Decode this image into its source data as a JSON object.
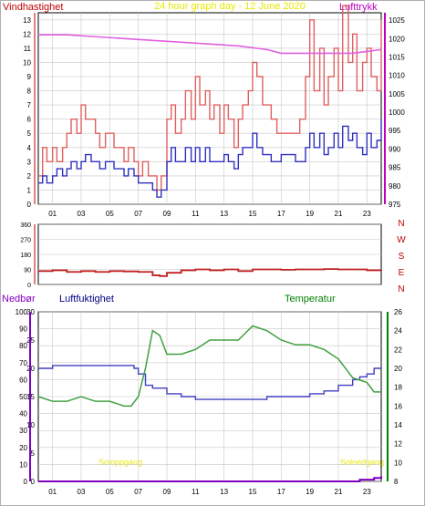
{
  "header": {
    "wind_label": "Vindhastighet",
    "title": "24 hour graph day - 12 June 2020",
    "pressure_label": "Lufttrykk"
  },
  "humidity_header": {
    "precip_label": "Nedbør",
    "humidity_label": "Luftfuktighet",
    "temp_label": "Temperatur"
  },
  "footer": {
    "sunrise": "Soloppgang",
    "sunset": "Solnedgang"
  },
  "colors": {
    "wind_max": "#e06060",
    "wind_avg": "#3030c0",
    "pressure": "#e060e0",
    "direction": "#c02020",
    "humidity": "#4040c0",
    "temperature": "#40a040",
    "precip": "#8000c0",
    "sun_text": "#e8e800",
    "grid": "#c8c8c8"
  },
  "chart_data": [
    {
      "type": "line",
      "title": "24 hour graph day - 12 June 2020",
      "ylabel": "Vindhastighet",
      "y2label": "Lufttrykk",
      "xticks": [
        "01",
        "03",
        "05",
        "07",
        "09",
        "11",
        "13",
        "15",
        "17",
        "19",
        "21",
        "23"
      ],
      "ylim": [
        0,
        13.5
      ],
      "yticks": [
        0,
        1,
        2,
        3,
        4,
        5,
        6,
        7,
        8,
        9,
        10,
        11,
        12,
        13
      ],
      "y2lim": [
        975,
        1027
      ],
      "y2ticks": [
        975,
        980,
        985,
        990,
        995,
        1000,
        1005,
        1010,
        1015,
        1020,
        1025
      ],
      "grid": true,
      "series": [
        {
          "axis": "left",
          "x": [
            0,
            0.3,
            0.6,
            1,
            1.3,
            1.7,
            2,
            2.3,
            2.7,
            3,
            3.3,
            3.7,
            4,
            4.3,
            4.7,
            5,
            5.3,
            5.7,
            6,
            6.3,
            6.7,
            7,
            7.3,
            7.7,
            8,
            8.3,
            8.6,
            9,
            9.3,
            9.6,
            10,
            10.3,
            10.7,
            11,
            11.3,
            11.7,
            12,
            12.3,
            12.7,
            13,
            13.3,
            13.7,
            14,
            14.3,
            14.7,
            15,
            15.3,
            15.7,
            16,
            16.3,
            16.7,
            17,
            17.3,
            17.7,
            18,
            18.3,
            18.7,
            19,
            19.3,
            19.7,
            20,
            20.3,
            20.7,
            21,
            21.3,
            21.7,
            22,
            22.3,
            22.7,
            23,
            23.3,
            23.7,
            24
          ],
          "values": [
            2,
            4,
            3,
            4,
            3,
            4,
            5,
            6,
            5,
            7,
            6,
            6,
            5,
            4,
            5,
            5,
            4,
            4,
            3,
            4,
            3,
            2,
            3,
            2,
            2,
            1,
            2,
            6,
            7,
            5,
            6,
            8,
            6,
            9,
            7,
            8,
            6,
            7,
            5,
            7,
            6,
            4,
            6,
            7,
            8,
            10,
            9,
            7,
            7,
            6,
            5,
            5,
            5,
            5,
            5,
            6,
            9,
            13,
            8,
            11,
            7,
            9,
            11,
            8,
            14,
            10,
            12,
            8,
            10,
            11,
            9,
            8,
            13
          ]
        },
        {
          "axis": "left",
          "x": [
            0,
            0.3,
            0.6,
            1,
            1.3,
            1.7,
            2,
            2.3,
            2.7,
            3,
            3.3,
            3.7,
            4,
            4.3,
            4.7,
            5,
            5.3,
            5.7,
            6,
            6.3,
            6.7,
            7,
            7.3,
            7.7,
            8,
            8.3,
            8.6,
            9,
            9.3,
            9.6,
            10,
            10.3,
            10.7,
            11,
            11.3,
            11.7,
            12,
            12.3,
            12.7,
            13,
            13.3,
            13.7,
            14,
            14.3,
            14.7,
            15,
            15.3,
            15.7,
            16,
            16.3,
            16.7,
            17,
            17.3,
            17.7,
            18,
            18.3,
            18.7,
            19,
            19.3,
            19.7,
            20,
            20.3,
            20.7,
            21,
            21.3,
            21.7,
            22,
            22.3,
            22.7,
            23,
            23.3,
            23.7,
            24
          ],
          "values": [
            1.5,
            2,
            1.5,
            2,
            2.5,
            2,
            2.5,
            3,
            2.5,
            3,
            3.5,
            3,
            3,
            2.5,
            3,
            3,
            2.5,
            2.5,
            2,
            2.5,
            2,
            1.5,
            1.5,
            1.5,
            1,
            0.5,
            1,
            3,
            4,
            3,
            3,
            4,
            3,
            4,
            3,
            4,
            3,
            3,
            3,
            3.5,
            3,
            2.5,
            3.5,
            4,
            4,
            5,
            4,
            3.5,
            3.5,
            3,
            3,
            3.5,
            3.5,
            3.5,
            3,
            3,
            4,
            5,
            4,
            5,
            3.5,
            4,
            5,
            4,
            5.5,
            4.5,
            5,
            4,
            3.5,
            5,
            4,
            4.5,
            6
          ]
        },
        {
          "axis": "right",
          "x": [
            0,
            2,
            4,
            6,
            8,
            10,
            12,
            14,
            16,
            17,
            18,
            20,
            22,
            23,
            24
          ],
          "values": [
            1021,
            1021,
            1020.5,
            1020,
            1019.5,
            1019,
            1018.5,
            1018,
            1017,
            1016,
            1016,
            1016,
            1016,
            1016.5,
            1017
          ]
        }
      ]
    },
    {
      "type": "line",
      "xticks": [],
      "ylim": [
        0,
        360
      ],
      "yticks": [
        0,
        45,
        90,
        135,
        180,
        225,
        270,
        315,
        360
      ],
      "right_ticks": [
        "N",
        "W",
        "S",
        "E",
        "N"
      ],
      "grid": true,
      "series": [
        {
          "x": [
            0,
            1,
            2,
            3,
            4,
            5,
            6,
            7,
            8,
            8.5,
            9,
            10,
            11,
            12,
            13,
            14,
            15,
            16,
            17,
            18,
            19,
            20,
            21,
            22,
            23,
            24
          ],
          "values": [
            80,
            85,
            75,
            80,
            75,
            80,
            78,
            75,
            55,
            50,
            70,
            85,
            90,
            85,
            90,
            80,
            90,
            90,
            88,
            90,
            90,
            92,
            90,
            90,
            85,
            80
          ]
        }
      ]
    },
    {
      "type": "line",
      "xticks": [
        "01",
        "03",
        "05",
        "07",
        "09",
        "11",
        "13",
        "15",
        "17",
        "19",
        "21",
        "23"
      ],
      "ylim": [
        0,
        100
      ],
      "yticks": [
        0,
        10,
        20,
        30,
        40,
        50,
        60,
        70,
        80,
        90,
        100
      ],
      "humidity_ticks": [
        0,
        5,
        10,
        15,
        20,
        25,
        30
      ],
      "y2lim": [
        8,
        26
      ],
      "y2ticks": [
        8,
        10,
        12,
        14,
        16,
        18,
        20,
        22,
        24,
        26
      ],
      "grid": true,
      "series": [
        {
          "axis": "humidity",
          "x": [
            0,
            1,
            2,
            3,
            4,
            5,
            6,
            6.7,
            7,
            7.5,
            8,
            9,
            10,
            11,
            12,
            13,
            14,
            15,
            16,
            17,
            18,
            19,
            20,
            21,
            22,
            22.5,
            23,
            23.5,
            24
          ],
          "values": [
            20,
            20.5,
            20.5,
            20.5,
            20.5,
            20.5,
            20.5,
            20,
            19,
            17,
            16.5,
            15.5,
            15,
            14.5,
            14.5,
            14.5,
            14.5,
            14.5,
            15,
            15,
            15,
            15.5,
            16,
            17,
            18,
            18.5,
            19,
            20,
            20.5
          ]
        },
        {
          "axis": "right",
          "x": [
            0,
            1,
            2,
            3,
            4,
            5,
            6,
            6.5,
            7,
            7.5,
            8,
            8.5,
            9,
            10,
            11,
            12,
            13,
            14,
            15,
            16,
            17,
            18,
            19,
            20,
            21,
            22,
            23,
            23.5,
            24
          ],
          "values": [
            17,
            16.5,
            16.5,
            17,
            16.5,
            16.5,
            16,
            16,
            17,
            20,
            24,
            23.5,
            21.5,
            21.5,
            22,
            23,
            23,
            23,
            24.5,
            24,
            23,
            22.5,
            22.5,
            22,
            21,
            19,
            18.5,
            17.5,
            17.5
          ]
        },
        {
          "axis": "left",
          "x": [
            0,
            22,
            22.5,
            23,
            23.5,
            24
          ],
          "values": [
            0,
            0,
            1,
            1,
            2,
            3
          ]
        }
      ]
    }
  ]
}
